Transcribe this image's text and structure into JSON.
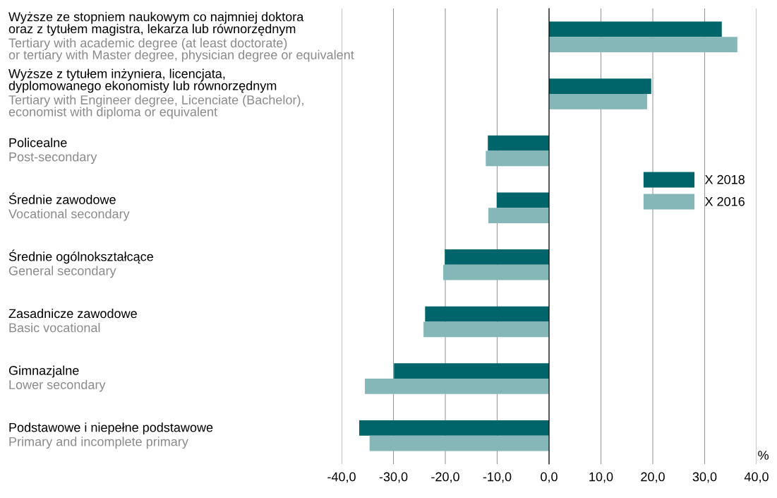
{
  "chart_data": {
    "type": "bar",
    "orientation": "horizontal",
    "categories": [
      "Wyższe ze stopniem naukowym co najmniej doktora\noraz z tytułem magistra, lekarza lub równorzędnym",
      "Wyższe z tytułem inżyniera, licencjata,\ndyplomowanego ekonomisty lub równorzędnym",
      "Policealne",
      "Średnie zawodowe",
      "Średnie ogólnokształcące",
      "Zasadnicze zawodowe",
      "Gimnazjalne",
      "Podstawowe i niepełne podstawowe"
    ],
    "annotations": [
      "Tertiary with academic degree (at least doctorate)\nor tertiary with Master degree, physician degree or equivalent",
      "Tertiary with Engineer degree, Licenciate (Bachelor),\neconomist with diploma or equivalent",
      "Post-secondary",
      "Vocational secondary",
      "General secondary",
      "Basic vocational",
      "Lower secondary",
      "Primary and incomplete primary"
    ],
    "series": [
      {
        "name": "X 2018",
        "color": "#00656a",
        "values": [
          33.3,
          19.7,
          -11.8,
          -10.1,
          -20.1,
          -23.9,
          -29.9,
          -36.6
        ]
      },
      {
        "name": "X 2016",
        "color": "#85b7b9",
        "values": [
          36.3,
          18.9,
          -12.2,
          -11.7,
          -20.4,
          -24.2,
          -35.5,
          -34.6
        ]
      }
    ],
    "xlabel": "%",
    "xlim": [
      -40,
      40
    ],
    "xticks": [
      {
        "value": -40,
        "label": "-40,0"
      },
      {
        "value": -30,
        "label": "-30,0"
      },
      {
        "value": -20,
        "label": "-20,0"
      },
      {
        "value": -10,
        "label": "-10,0"
      },
      {
        "value": 0,
        "label": "0,0"
      },
      {
        "value": 10,
        "label": "10,0"
      },
      {
        "value": 20,
        "label": "20,0"
      },
      {
        "value": 30,
        "label": "30,0"
      },
      {
        "value": 40,
        "label": "40,0"
      }
    ],
    "grid": "x",
    "legend": "right"
  }
}
